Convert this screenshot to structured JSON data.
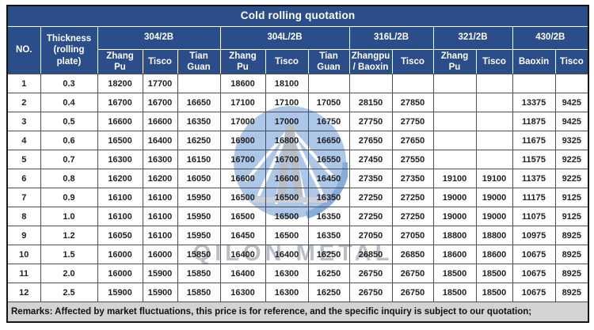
{
  "table": {
    "title": "Cold rolling quotation",
    "col_no": "NO.",
    "col_thickness": "Thickness (rolling plate)",
    "groups": [
      {
        "label": "304/2B",
        "subs": [
          "Zhang Pu",
          "Tisco",
          "Tian Guan"
        ]
      },
      {
        "label": "304L/2B",
        "subs": [
          "Zhang Pu",
          "Tisco",
          "Tian Guan"
        ]
      },
      {
        "label": "316L/2B",
        "subs": [
          "Zhangpu / Baoxin",
          "Tisco"
        ]
      },
      {
        "label": "321/2B",
        "subs": [
          "Zhang Pu",
          "Tisco"
        ]
      },
      {
        "label": "430/2B",
        "subs": [
          "Baoxin",
          "Tisco"
        ]
      }
    ],
    "rows": [
      [
        "1",
        "0.3",
        "18200",
        "17700",
        "",
        "18600",
        "18100",
        "",
        "",
        "",
        "",
        "",
        "",
        ""
      ],
      [
        "2",
        "0.4",
        "16700",
        "16700",
        "16650",
        "17100",
        "17100",
        "17050",
        "28150",
        "27850",
        "",
        "",
        "13375",
        "9425"
      ],
      [
        "3",
        "0.5",
        "16600",
        "16600",
        "16350",
        "17000",
        "17000",
        "16750",
        "27750",
        "27750",
        "",
        "",
        "11875",
        "9425"
      ],
      [
        "4",
        "0.6",
        "16500",
        "16400",
        "16250",
        "16900",
        "16800",
        "16650",
        "27650",
        "27650",
        "",
        "",
        "11675",
        "9325"
      ],
      [
        "5",
        "0.7",
        "16300",
        "16300",
        "16150",
        "16700",
        "16700",
        "16550",
        "27450",
        "27550",
        "",
        "",
        "11575",
        "9225"
      ],
      [
        "6",
        "0.8",
        "16200",
        "16200",
        "16050",
        "16600",
        "16600",
        "16450",
        "27350",
        "27350",
        "19100",
        "19100",
        "11375",
        "9225"
      ],
      [
        "7",
        "0.9",
        "16100",
        "16100",
        "15950",
        "16500",
        "16500",
        "16350",
        "27250",
        "27250",
        "19000",
        "19000",
        "11175",
        "9125"
      ],
      [
        "8",
        "1.0",
        "16100",
        "16100",
        "15950",
        "16500",
        "16500",
        "16350",
        "27250",
        "27250",
        "19000",
        "19000",
        "11075",
        "9125"
      ],
      [
        "9",
        "1.2",
        "16050",
        "16100",
        "15950",
        "16450",
        "16500",
        "16350",
        "27050",
        "27050",
        "18800",
        "18800",
        "10975",
        "8925"
      ],
      [
        "10",
        "1.5",
        "16000",
        "16000",
        "15850",
        "16400",
        "16400",
        "16250",
        "26850",
        "26850",
        "18600",
        "18600",
        "10675",
        "8925"
      ],
      [
        "11",
        "2.0",
        "16000",
        "15900",
        "15850",
        "16400",
        "16300",
        "16250",
        "26750",
        "26750",
        "18500",
        "18500",
        "10675",
        "8925"
      ],
      [
        "12",
        "2.5",
        "15900",
        "15900",
        "15850",
        "16300",
        "16300",
        "16250",
        "26750",
        "26750",
        "18500",
        "18500",
        "10675",
        "8925"
      ]
    ],
    "remarks": "Remarks: Affected by market fluctuations, this price is for reference, and the specific inquiry is subject to our quotation;"
  },
  "watermark": {
    "text": "QILON METAL"
  },
  "colors": {
    "header_blue": "#2b4d89",
    "grid": "#4d4d4d",
    "remarks_bg": "#d3d3d3",
    "watermark_blue": "#9cbbe5"
  }
}
